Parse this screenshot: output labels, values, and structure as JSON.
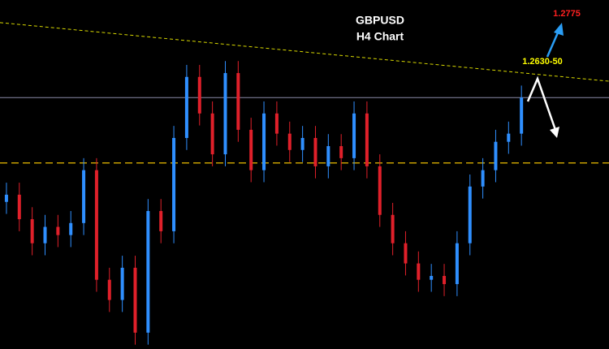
{
  "chart_data": {
    "type": "candlestick",
    "title": "GBPUSD",
    "subtitle": "H4 Chart",
    "annotations": [
      "1.2630-50",
      "1.2775"
    ],
    "up_color": "#2f8fff",
    "down_color": "#e0202a",
    "xlim": [
      -0.5,
      46.8
    ],
    "ylim": [
      1.2074,
      1.28
    ],
    "open": [
      1.238,
      1.2395,
      1.2344,
      1.2294,
      1.2328,
      1.2311,
      1.2336,
      1.2446,
      1.2218,
      1.2176,
      1.2243,
      1.2108,
      1.2361,
      1.2319,
      1.2513,
      1.264,
      1.2564,
      1.2479,
      1.2648,
      1.253,
      1.2446,
      1.2564,
      1.2522,
      1.2488,
      1.2513,
      1.2454,
      1.2496,
      1.2471,
      1.2564,
      1.2454,
      1.2353,
      1.2294,
      1.2252,
      1.2218,
      1.2226,
      1.2209,
      1.2294,
      1.2412,
      1.2446,
      1.2505,
      1.2522
    ],
    "high": [
      1.242,
      1.242,
      1.2369,
      1.2353,
      1.2353,
      1.2361,
      1.2471,
      1.2471,
      1.2243,
      1.2268,
      1.2268,
      1.2386,
      1.2386,
      1.2538,
      1.2665,
      1.2665,
      1.2589,
      1.2673,
      1.2673,
      1.2555,
      1.2589,
      1.2589,
      1.2547,
      1.2538,
      1.2538,
      1.2521,
      1.2521,
      1.2589,
      1.2589,
      1.2479,
      1.2378,
      1.2319,
      1.2277,
      1.2251,
      1.2251,
      1.2319,
      1.2437,
      1.2471,
      1.253,
      1.2547,
      1.2622
    ],
    "low": [
      1.2355,
      1.2319,
      1.2269,
      1.2269,
      1.2286,
      1.2286,
      1.2311,
      1.2193,
      1.2151,
      1.2151,
      1.2083,
      1.2083,
      1.2294,
      1.2294,
      1.2488,
      1.2539,
      1.2454,
      1.2454,
      1.2505,
      1.2421,
      1.2421,
      1.2497,
      1.2463,
      1.2463,
      1.2429,
      1.2429,
      1.2446,
      1.2446,
      1.2429,
      1.2328,
      1.2269,
      1.2227,
      1.2193,
      1.2193,
      1.2184,
      1.2184,
      1.2269,
      1.2387,
      1.2421,
      1.248,
      1.2497
    ],
    "close": [
      1.2395,
      1.2344,
      1.2294,
      1.2328,
      1.2311,
      1.2336,
      1.2446,
      1.2218,
      1.2176,
      1.2243,
      1.2108,
      1.2361,
      1.2319,
      1.2513,
      1.264,
      1.2564,
      1.2479,
      1.2648,
      1.253,
      1.2446,
      1.2564,
      1.2522,
      1.2488,
      1.2513,
      1.2454,
      1.2496,
      1.2471,
      1.2564,
      1.2454,
      1.2353,
      1.2294,
      1.2252,
      1.2218,
      1.2226,
      1.2209,
      1.2294,
      1.2412,
      1.2446,
      1.2505,
      1.2522,
      1.2597
    ],
    "support_level": 1.2461,
    "support_color": "#c8a000",
    "current_level": 1.2597,
    "current_color": "#8a8aa8",
    "trendline": [
      1.2753,
      1.2631
    ],
    "trendline_color": "#d8d800"
  }
}
